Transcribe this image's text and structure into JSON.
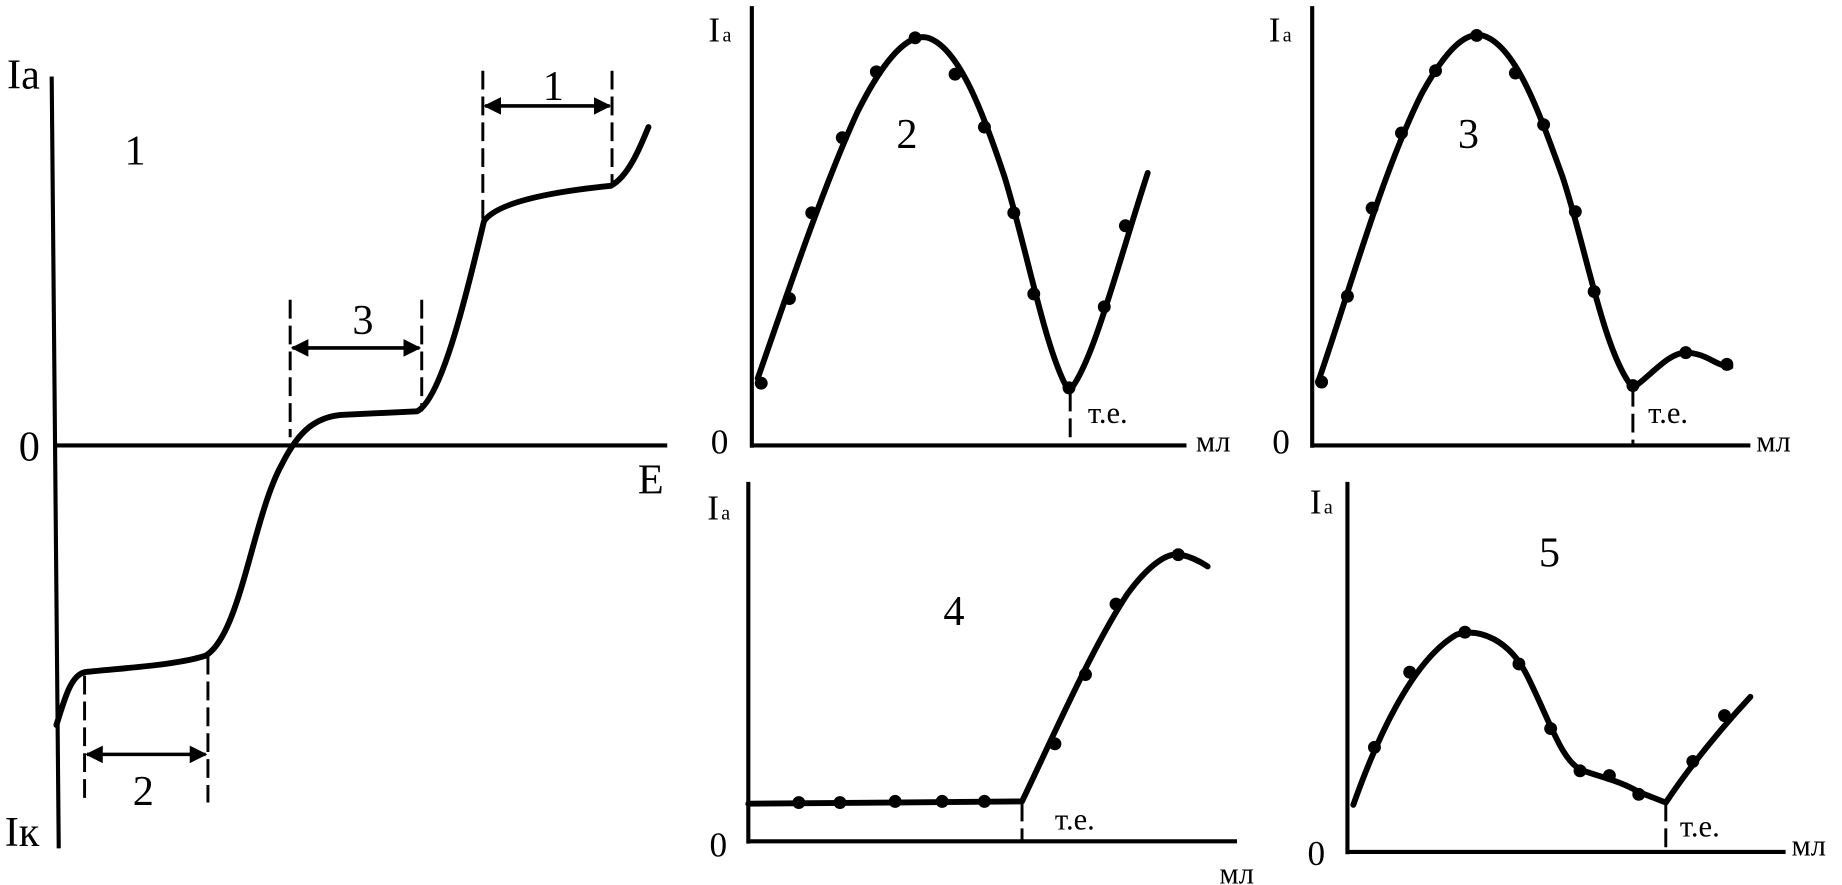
{
  "panels": [
    {
      "number": "1",
      "y_label_top": "Ia",
      "y_label_bottom": "Iк",
      "origin": "0",
      "x_label": "E",
      "intervals": [
        "1",
        "3",
        "2"
      ]
    },
    {
      "number": "2",
      "y_label": {
        "main": "I",
        "sub": "a"
      },
      "origin": "0",
      "x_label": "мл",
      "endpoint": "т.е."
    },
    {
      "number": "3",
      "y_label": {
        "main": "I",
        "sub": "a"
      },
      "origin": "0",
      "x_label": "мл",
      "endpoint": "т.е."
    },
    {
      "number": "4",
      "y_label": {
        "main": "I",
        "sub": "a"
      },
      "origin": "0",
      "x_label": "мл",
      "endpoint": "т.е."
    },
    {
      "number": "5",
      "y_label": {
        "main": "I",
        "sub": "a"
      },
      "origin": "0",
      "x_label": "мл",
      "endpoint": "т.е."
    }
  ]
}
